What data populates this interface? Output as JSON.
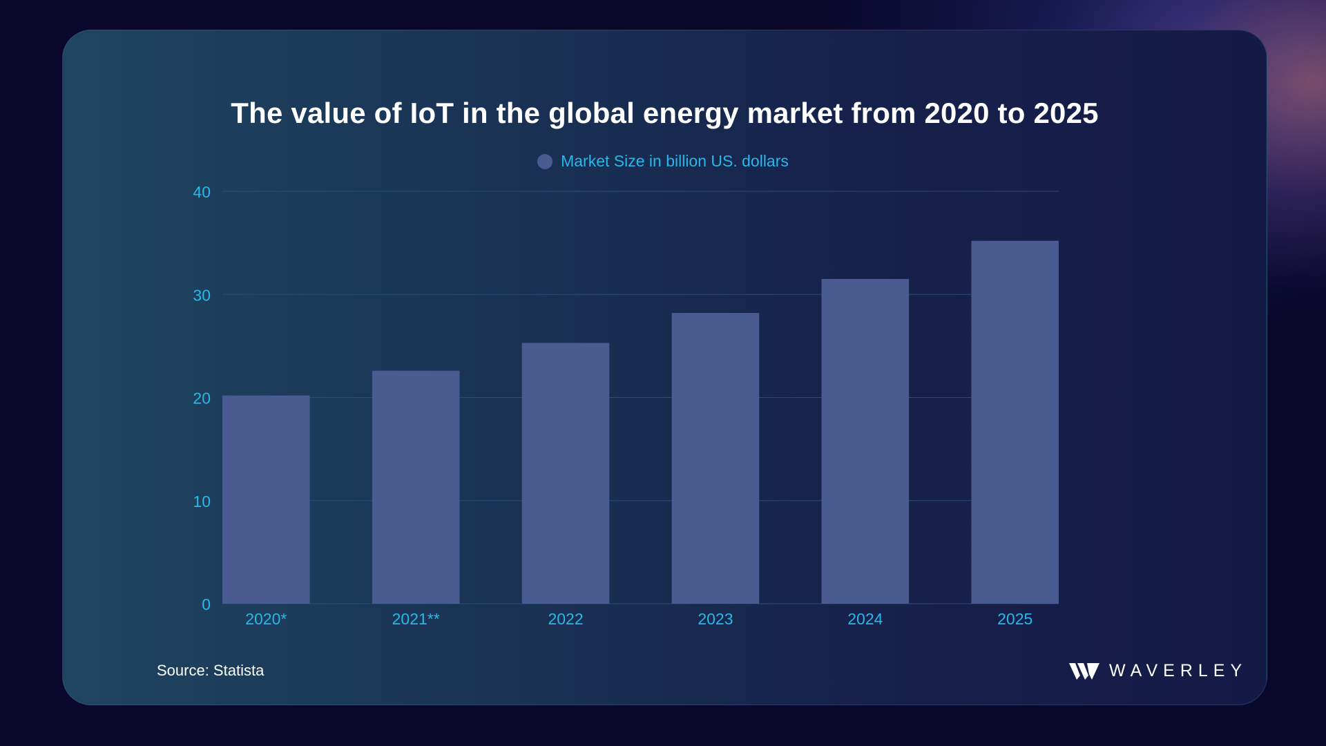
{
  "chart_data": {
    "type": "bar",
    "title": "The value of IoT in the global energy market from 2020 to 2025",
    "categories": [
      "2020*",
      "2021**",
      "2022",
      "2023",
      "2024",
      "2025"
    ],
    "series": [
      {
        "name": "Market Size in billion US. dollars",
        "values": [
          20.2,
          22.6,
          25.3,
          28.2,
          31.5,
          35.2
        ]
      }
    ],
    "yticks": [
      "0",
      "10",
      "20",
      "30",
      "40"
    ],
    "ylim": [
      0,
      40
    ],
    "grid": true,
    "legend_position": "top-center",
    "bar_color": "#4a5b92",
    "grid_color": "#2a4d78",
    "tick_color": "#29b8e8"
  },
  "source": "Source: Statista",
  "logo": {
    "text": "WAVERLEY",
    "icon": "waverley-logo-icon"
  },
  "colors": {
    "background": "#09072a",
    "card": "#1a3355",
    "title": "#ffffff"
  }
}
